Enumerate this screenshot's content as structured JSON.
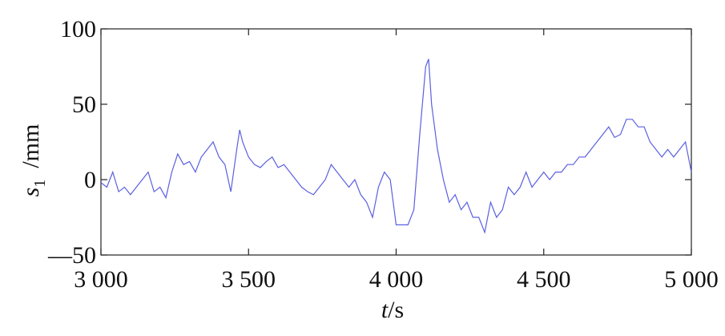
{
  "chart_data": {
    "type": "line",
    "x_label": {
      "symbol": "t",
      "unit": "/s"
    },
    "y_label": {
      "symbol": "s",
      "subscript": "1",
      "unit": "/mm"
    },
    "xlim": [
      3000,
      5000
    ],
    "ylim": [
      -50,
      100
    ],
    "xticks": [
      {
        "value": 3000,
        "label": "3 000"
      },
      {
        "value": 3500,
        "label": "3 500"
      },
      {
        "value": 4000,
        "label": "4 000"
      },
      {
        "value": 4500,
        "label": "4 500"
      },
      {
        "value": 5000,
        "label": "5 000"
      }
    ],
    "yticks": [
      {
        "value": -50,
        "label": "—50"
      },
      0,
      50,
      100
    ],
    "grid": false,
    "x": [
      3000,
      3020,
      3040,
      3060,
      3080,
      3100,
      3120,
      3140,
      3160,
      3180,
      3200,
      3220,
      3240,
      3260,
      3280,
      3300,
      3320,
      3340,
      3360,
      3380,
      3400,
      3420,
      3440,
      3460,
      3470,
      3480,
      3500,
      3520,
      3540,
      3560,
      3580,
      3600,
      3620,
      3640,
      3660,
      3680,
      3700,
      3720,
      3740,
      3760,
      3780,
      3800,
      3820,
      3840,
      3860,
      3880,
      3900,
      3920,
      3940,
      3960,
      3980,
      4000,
      4020,
      4040,
      4060,
      4080,
      4100,
      4110,
      4120,
      4140,
      4160,
      4180,
      4200,
      4220,
      4240,
      4260,
      4280,
      4300,
      4320,
      4340,
      4360,
      4380,
      4400,
      4420,
      4440,
      4460,
      4480,
      4500,
      4520,
      4540,
      4560,
      4580,
      4600,
      4620,
      4640,
      4660,
      4680,
      4700,
      4720,
      4740,
      4760,
      4780,
      4800,
      4820,
      4840,
      4860,
      4880,
      4900,
      4920,
      4940,
      4960,
      4980,
      5000
    ],
    "series": [
      {
        "color": "#5b5fe0",
        "values": [
          -2,
          -5,
          5,
          -8,
          -5,
          -10,
          -5,
          0,
          5,
          -8,
          -5,
          -12,
          5,
          17,
          10,
          12,
          5,
          15,
          20,
          25,
          15,
          10,
          -8,
          20,
          33,
          25,
          15,
          10,
          8,
          12,
          15,
          8,
          10,
          5,
          0,
          -5,
          -8,
          -10,
          -5,
          0,
          10,
          5,
          0,
          -5,
          0,
          -10,
          -15,
          -25,
          -5,
          5,
          0,
          -30,
          -30,
          -30,
          -20,
          30,
          75,
          80,
          50,
          20,
          0,
          -15,
          -10,
          -20,
          -15,
          -25,
          -25,
          -35,
          -15,
          -25,
          -20,
          -5,
          -10,
          -5,
          5,
          -5,
          0,
          5,
          0,
          5,
          5,
          10,
          10,
          15,
          15,
          20,
          25,
          30,
          35,
          28,
          30,
          40,
          40,
          35,
          35,
          25,
          20,
          15,
          20,
          15,
          20,
          25,
          5
        ]
      }
    ]
  }
}
